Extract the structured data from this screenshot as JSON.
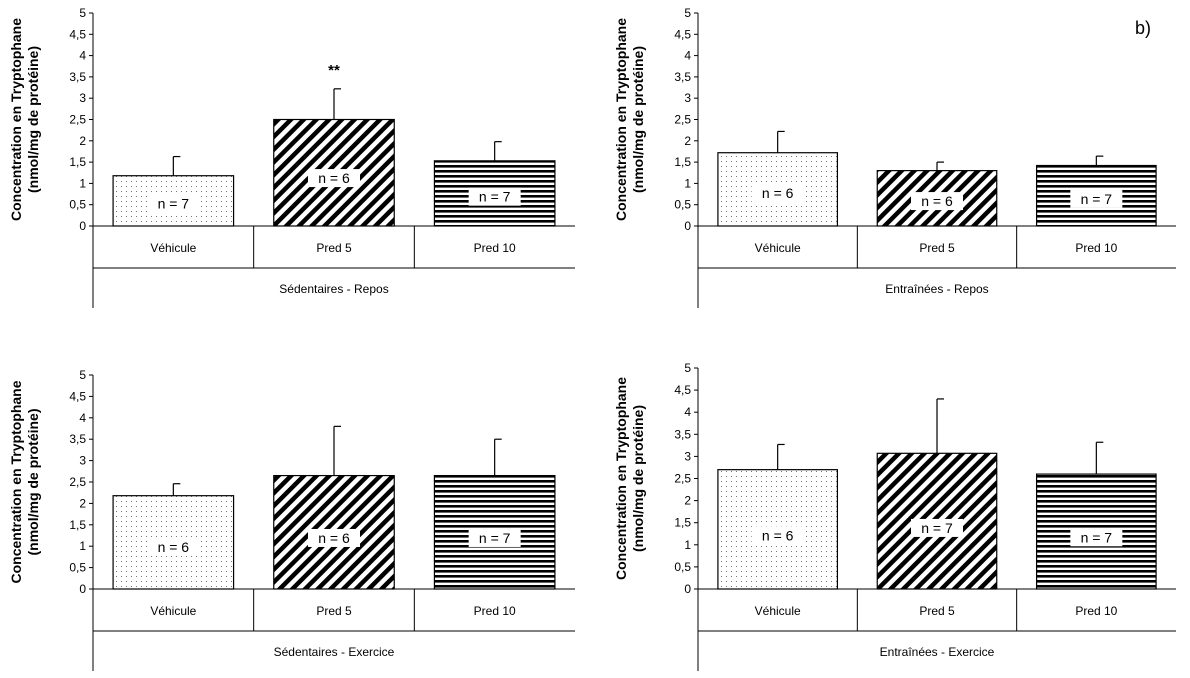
{
  "figure": {
    "panel_label": "b)"
  },
  "patterns": [
    "dots",
    "diagonal",
    "horizontal"
  ],
  "chart_data": [
    {
      "type": "bar",
      "ylabel": [
        "Concentration en Tryptophane",
        "(nmol/mg de protéine)"
      ],
      "ylim": [
        0,
        5
      ],
      "yticks": [
        "0",
        "0,5",
        "1",
        "1,5",
        "2",
        "2,5",
        "3",
        "3,5",
        "4",
        "4,5",
        "5"
      ],
      "categories": [
        "Véhicule",
        "Pred 5",
        "Pred 10"
      ],
      "group_label": "Sédentaires - Repos",
      "values": [
        1.18,
        2.5,
        1.53
      ],
      "errors": [
        0.45,
        0.72,
        0.45
      ],
      "n_labels": [
        "n = 7",
        "n = 6",
        "n = 7"
      ],
      "annotations": [
        "",
        "**",
        ""
      ]
    },
    {
      "type": "bar",
      "ylabel": [
        "Concentration en Tryptophane",
        "(nmol/mg de protéine)"
      ],
      "ylim": [
        0,
        5
      ],
      "yticks": [
        "0",
        "0,5",
        "1",
        "1,5",
        "2",
        "2,5",
        "3",
        "3,5",
        "4",
        "4,5",
        "5"
      ],
      "categories": [
        "Véhicule",
        "Pred 5",
        "Pred 10"
      ],
      "group_label": "Entraînées - Repos",
      "values": [
        1.72,
        1.3,
        1.42
      ],
      "errors": [
        0.5,
        0.2,
        0.22
      ],
      "n_labels": [
        "n = 6",
        "n = 6",
        "n = 7"
      ],
      "annotations": [
        "",
        "",
        ""
      ]
    },
    {
      "type": "bar",
      "ylabel": [
        "Concentration en Tryptophane",
        "(nmol/mg de protéine)"
      ],
      "ylim": [
        0,
        5
      ],
      "yticks": [
        "0",
        "0,5",
        "1",
        "1,5",
        "2",
        "2,5",
        "3",
        "3,5",
        "4",
        "4,5",
        "5"
      ],
      "categories": [
        "Véhicule",
        "Pred 5",
        "Pred 10"
      ],
      "group_label": "Sédentaires - Exercice",
      "values": [
        2.18,
        2.65,
        2.65
      ],
      "errors": [
        0.28,
        1.15,
        0.85
      ],
      "n_labels": [
        "n = 6",
        "n = 6",
        "n = 7"
      ],
      "annotations": [
        "",
        "",
        ""
      ]
    },
    {
      "type": "bar",
      "ylabel": [
        "Concentration en Tryptophane",
        "(nmol/mg de protéine)"
      ],
      "ylim": [
        0,
        5
      ],
      "yticks": [
        "0",
        "0,5",
        "1",
        "1,5",
        "2",
        "2,5",
        "3",
        "3,5",
        "4",
        "4,5",
        "5"
      ],
      "categories": [
        "Véhicule",
        "Pred 5",
        "Pred 10"
      ],
      "group_label": "Entraînées - Exercice",
      "values": [
        2.7,
        3.07,
        2.6
      ],
      "errors": [
        0.57,
        1.23,
        0.72
      ],
      "n_labels": [
        "n = 6",
        "n = 7",
        "n = 7"
      ],
      "annotations": [
        "",
        "",
        ""
      ]
    }
  ]
}
